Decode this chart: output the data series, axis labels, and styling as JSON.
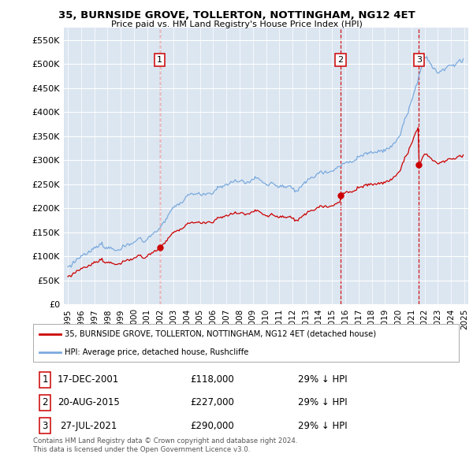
{
  "title": "35, BURNSIDE GROVE, TOLLERTON, NOTTINGHAM, NG12 4ET",
  "subtitle": "Price paid vs. HM Land Registry's House Price Index (HPI)",
  "legend_property": "35, BURNSIDE GROVE, TOLLERTON, NOTTINGHAM, NG12 4ET (detached house)",
  "legend_hpi": "HPI: Average price, detached house, Rushcliffe",
  "footnote1": "Contains HM Land Registry data © Crown copyright and database right 2024.",
  "footnote2": "This data is licensed under the Open Government Licence v3.0.",
  "transactions": [
    {
      "label": "1",
      "date": "17-DEC-2001",
      "price": 118000,
      "note": "29% ↓ HPI",
      "year": 2001.96
    },
    {
      "label": "2",
      "date": "20-AUG-2015",
      "price": 227000,
      "note": "29% ↓ HPI",
      "year": 2015.63
    },
    {
      "label": "3",
      "date": "27-JUL-2021",
      "price": 290000,
      "note": "29% ↓ HPI",
      "year": 2021.57
    }
  ],
  "ylim": [
    0,
    575000
  ],
  "yticks": [
    0,
    50000,
    100000,
    150000,
    200000,
    250000,
    300000,
    350000,
    400000,
    450000,
    500000,
    550000
  ],
  "xlim_start": 1994.7,
  "xlim_end": 2025.3,
  "property_color": "#cc0000",
  "hpi_color": "#7aaadd",
  "transaction_vline_color": "#cc0000",
  "plot_bg_color": "#dce6f1"
}
